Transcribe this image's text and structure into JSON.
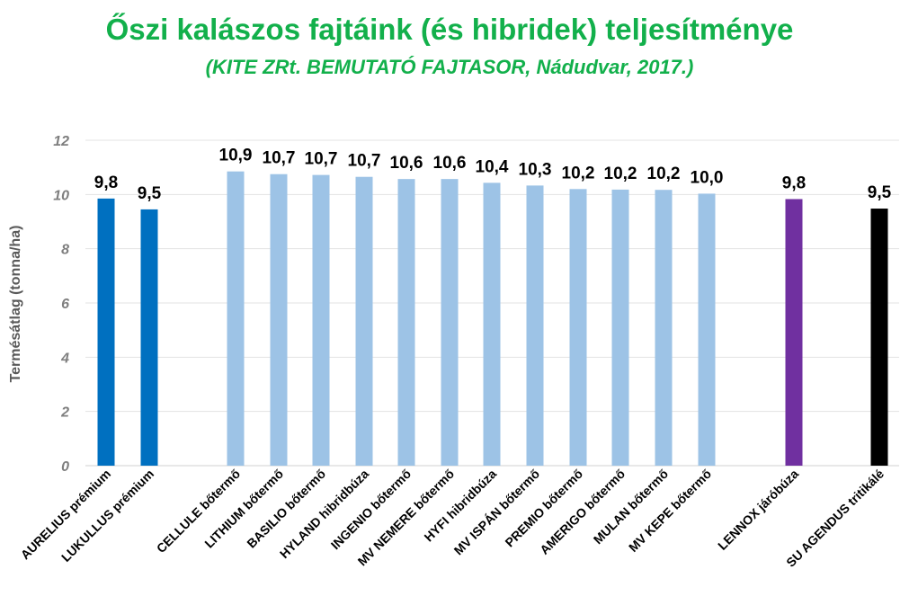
{
  "chart_data": {
    "type": "bar",
    "title": "Őszi kalászos fajtáink (és hibridek) teljesítménye",
    "subtitle": "(KITE ZRt. BEMUTATÓ FAJTASOR, Nádudvar, 2017.)",
    "ylabel": "Termésátlag (tonna/ha)",
    "xlabel": "",
    "ylim": [
      0,
      12
    ],
    "yticks": [
      0,
      2,
      4,
      6,
      8,
      10,
      12
    ],
    "grid": true,
    "categories": [
      "AURELIUS prémium",
      "LUKULLUS prémium",
      "CELLULE bőtermő",
      "LITHIUM bőtermő",
      "BASILIO bőtermő",
      "HYLAND hibridbúza",
      "INGENIO bőtermő",
      "MV NEMERE bőtermő",
      "HYFI hibridbúza",
      "MV ISPÁN bőtermő",
      "PREMIO bőtermő",
      "AMERIGO bőtermő",
      "MULAN bőtermő",
      "MV KEPE bőtermő",
      "LENNOX járóbúza",
      "SU AGENDUS  tritikálé"
    ],
    "values": [
      9.85,
      9.45,
      10.85,
      10.75,
      10.72,
      10.65,
      10.57,
      10.57,
      10.43,
      10.33,
      10.2,
      10.18,
      10.17,
      10.03,
      9.83,
      9.48
    ],
    "value_labels": [
      "9,8",
      "9,5",
      "10,9",
      "10,7",
      "10,7",
      "10,7",
      "10,6",
      "10,6",
      "10,4",
      "10,3",
      "10,2",
      "10,2",
      "10,2",
      "10,0",
      "9,8",
      "9,5"
    ],
    "colors": [
      "#0070c0",
      "#0070c0",
      "#9dc3e6",
      "#9dc3e6",
      "#9dc3e6",
      "#9dc3e6",
      "#9dc3e6",
      "#9dc3e6",
      "#9dc3e6",
      "#9dc3e6",
      "#9dc3e6",
      "#9dc3e6",
      "#9dc3e6",
      "#9dc3e6",
      "#7030a0",
      "#000000"
    ]
  }
}
